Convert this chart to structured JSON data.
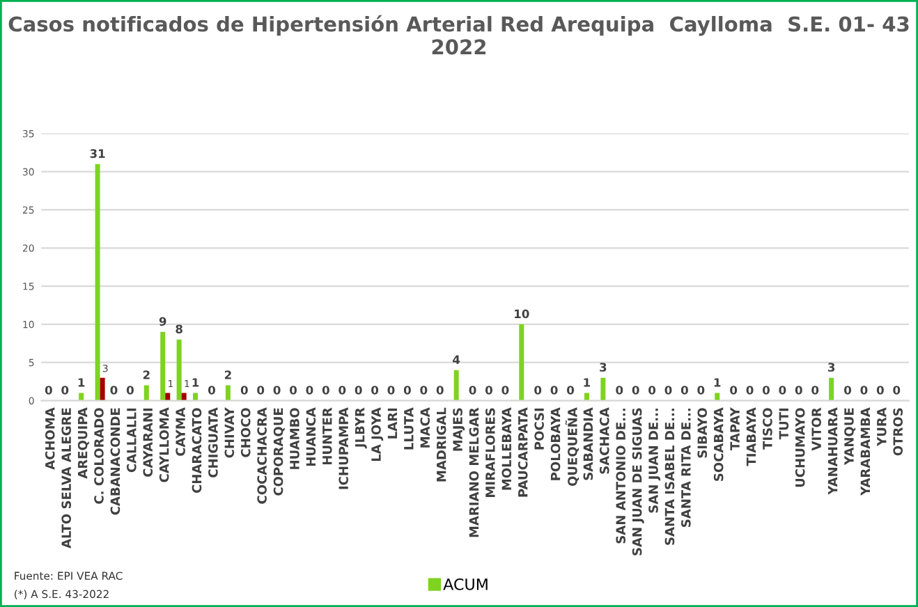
{
  "chart_data": {
    "type": "bar",
    "title": "Casos notificados de Hipertensión Arterial Red Arequipa  Caylloma  S.E. 01- 43\n2022",
    "categories": [
      "ACHOMA",
      "ALTO SELVA ALEGRE",
      "AREQUIPA",
      "C. COLORADO",
      "CABANACONDE",
      "CALLALLI",
      "CAYARANI",
      "CAYLLOMA",
      "CAYMA",
      "CHARACATO",
      "CHIGUATA",
      "CHIVAY",
      "CHOCO",
      "COCACHACRA",
      "COPORAQUE",
      "HUAMBO",
      "HUANCA",
      "HUNTER",
      "ICHUPAMPA",
      "JLBYR",
      "LA JOYA",
      "LARI",
      "LLUTA",
      "MACA",
      "MADRIGAL",
      "MAJES",
      "MARIANO MELGAR",
      "MIRAFLORES",
      "MOLLEBAYA",
      "PAUCARPATA",
      "POCSI",
      "POLOBAYA",
      "QUEQUEÑA",
      "SABANDIA",
      "SACHACA",
      "SAN ANTONIO DE...",
      "SAN JUAN DE SIGUAS",
      "SAN JUAN DE...",
      "SANTA ISABEL DE...",
      "SANTA RITA DE...",
      "SIBAYO",
      "SOCABAYA",
      "TAPAY",
      "TIABAYA",
      "TISCO",
      "TUTI",
      "UCHUMAYO",
      "VITOR",
      "YANAHUARA",
      "YANQUE",
      "YARABAMBA",
      "YURA",
      "OTROS"
    ],
    "series": [
      {
        "name": "ACUM",
        "color": "#7ed321",
        "values": [
          0,
          0,
          1,
          31,
          0,
          0,
          2,
          9,
          8,
          1,
          0,
          2,
          0,
          0,
          0,
          0,
          0,
          0,
          0,
          0,
          0,
          0,
          0,
          0,
          0,
          4,
          0,
          0,
          0,
          10,
          0,
          0,
          0,
          1,
          3,
          0,
          0,
          0,
          0,
          0,
          0,
          1,
          0,
          0,
          0,
          0,
          0,
          0,
          3,
          0,
          0,
          0,
          0
        ],
        "value_labels": [
          "0",
          "0",
          "1",
          "31",
          "0",
          "0",
          "2",
          "9",
          "8",
          "1",
          "0",
          "2",
          "0",
          "0",
          "0",
          "0",
          "0",
          "0",
          "0",
          "0",
          "0",
          "0",
          "0",
          "0",
          "0",
          "4",
          "0",
          "0",
          "0",
          "10",
          "0",
          "0",
          "0",
          "1",
          "3",
          "0",
          "0",
          "0",
          "0",
          "0",
          "0",
          "1",
          "0",
          "0",
          "0",
          "0",
          "0",
          "0",
          "3",
          "0",
          "0",
          "0",
          "0"
        ]
      },
      {
        "color": "#a50000",
        "values": [
          null,
          null,
          null,
          3,
          null,
          null,
          null,
          1,
          1,
          null,
          null,
          null,
          null,
          null,
          null,
          null,
          null,
          null,
          null,
          null,
          null,
          null,
          null,
          null,
          null,
          null,
          null,
          null,
          null,
          null,
          null,
          null,
          null,
          null,
          null,
          null,
          null,
          null,
          null,
          null,
          null,
          null,
          null,
          null,
          null,
          null,
          null,
          null,
          null,
          null,
          null,
          null,
          null
        ],
        "value_labels": [
          null,
          null,
          null,
          "3",
          null,
          null,
          null,
          "1",
          "1",
          null,
          null,
          null,
          null,
          null,
          null,
          null,
          null,
          null,
          null,
          null,
          null,
          null,
          null,
          null,
          null,
          null,
          null,
          null,
          null,
          null,
          null,
          null,
          null,
          null,
          null,
          null,
          null,
          null,
          null,
          null,
          null,
          null,
          null,
          null,
          null,
          null,
          null,
          null,
          null,
          null,
          null,
          null,
          null
        ]
      }
    ],
    "ylim": [
      0,
      35
    ],
    "yticks": [
      0,
      5,
      10,
      15,
      20,
      25,
      30,
      35
    ],
    "grid": "y",
    "legend": "bottom",
    "annotations": [
      "Fuente: EPI VEA RAC",
      "(*) A S.E. 43-2022"
    ]
  }
}
